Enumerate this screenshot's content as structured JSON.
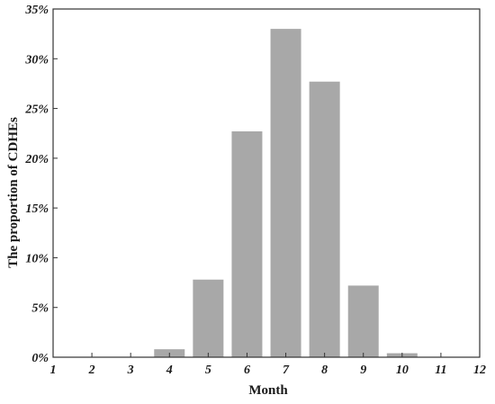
{
  "chart_data": {
    "type": "bar",
    "title": "",
    "xlabel": "Month",
    "ylabel": "The proportion of CDHEs",
    "x": [
      1,
      2,
      3,
      4,
      5,
      6,
      7,
      8,
      9,
      10,
      11,
      12
    ],
    "values": [
      0,
      0,
      0,
      0.8,
      7.8,
      22.7,
      33.0,
      27.7,
      7.2,
      0.4,
      0,
      0
    ],
    "xlim": [
      1,
      12
    ],
    "ylim": [
      0,
      35
    ],
    "xticks": [
      1,
      2,
      3,
      4,
      5,
      6,
      7,
      8,
      9,
      10,
      11,
      12
    ],
    "xtick_labels": [
      "1",
      "2",
      "3",
      "4",
      "5",
      "6",
      "7",
      "8",
      "9",
      "10",
      "11",
      "12"
    ],
    "yticks": [
      0,
      5,
      10,
      15,
      20,
      25,
      30,
      35
    ],
    "ytick_labels": [
      "0%",
      "5%",
      "10%",
      "15%",
      "20%",
      "25%",
      "30%",
      "35%"
    ],
    "bar_color": "#a8a8a8",
    "axis_color": "#333333",
    "grid": false,
    "legend": "none"
  }
}
